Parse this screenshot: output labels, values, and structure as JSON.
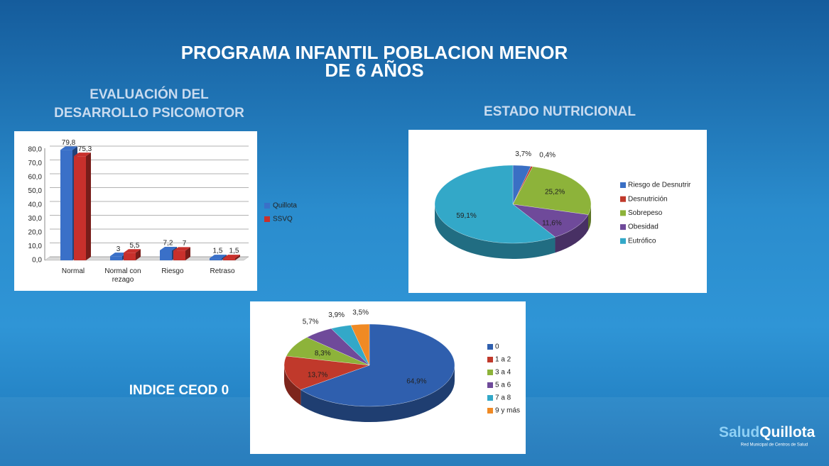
{
  "title": [
    "PROGRAMA INFANTIL POBLACION MENOR",
    "DE 6 AÑOS"
  ],
  "logo": {
    "part1": "Salud",
    "part2": "Quillota",
    "tagline": "Red Municipal de Centros de Salud"
  },
  "chart_data": [
    {
      "type": "bar",
      "title": [
        "EVALUACIÓN DEL",
        "DESARROLLO PSICOMOTOR"
      ],
      "categories": [
        "Normal",
        "Normal con rezago",
        "Riesgo",
        "Retraso"
      ],
      "series": [
        {
          "name": "Quillota",
          "color": "#3a70c8",
          "values": [
            79.8,
            3,
            7.2,
            1.5
          ],
          "value_labels": [
            "79,8",
            "3",
            "7,2",
            "1,5"
          ]
        },
        {
          "name": "SSVQ",
          "color": "#c8302c",
          "values": [
            75.3,
            5.5,
            7,
            1.5
          ],
          "value_labels": [
            "75,3",
            "5,5",
            "7",
            "1,5"
          ]
        }
      ],
      "ylim": [
        0,
        80
      ],
      "yticks": [
        {
          "value": 0,
          "label": "0,0"
        },
        {
          "value": 10,
          "label": "10,0"
        },
        {
          "value": 20,
          "label": "20,0"
        },
        {
          "value": 30,
          "label": "30,0"
        },
        {
          "value": 40,
          "label": "40,0"
        },
        {
          "value": 50,
          "label": "50,0"
        },
        {
          "value": 60,
          "label": "60,0"
        },
        {
          "value": 70,
          "label": "70,0"
        },
        {
          "value": 80,
          "label": "80,0"
        }
      ],
      "grid": true,
      "legend": "right"
    },
    {
      "type": "pie",
      "title": "ESTADO NUTRICIONAL",
      "categories": [
        "Riesgo de Desnutrir",
        "Desnutrición",
        "Sobrepeso",
        "Obesidad",
        "Eutrófico"
      ],
      "values": [
        3.7,
        0.4,
        25.2,
        11.6,
        59.1
      ],
      "value_labels": [
        "3,7%",
        "0,4%",
        "25,2%",
        "11,6%",
        "59,1%"
      ],
      "colors": [
        "#3a6fc4",
        "#c0392b",
        "#8db33a",
        "#6f4a9a",
        "#33a8c8"
      ],
      "legend": "right"
    },
    {
      "type": "pie",
      "title": "INDICE CEOD 0",
      "categories": [
        "0",
        "1 a 2",
        "3 a 4",
        "5 a 6",
        "7 a 8",
        "9 y más"
      ],
      "values": [
        64.9,
        13.7,
        8.3,
        5.7,
        3.9,
        3.5
      ],
      "value_labels": [
        "64,9%",
        "13,7%",
        "8,3%",
        "5,7%",
        "3,9%",
        "3,5%"
      ],
      "colors": [
        "#2f5fae",
        "#c0392b",
        "#8db33a",
        "#6f4a9a",
        "#33a8c8",
        "#f08a24"
      ],
      "legend": "right"
    }
  ]
}
